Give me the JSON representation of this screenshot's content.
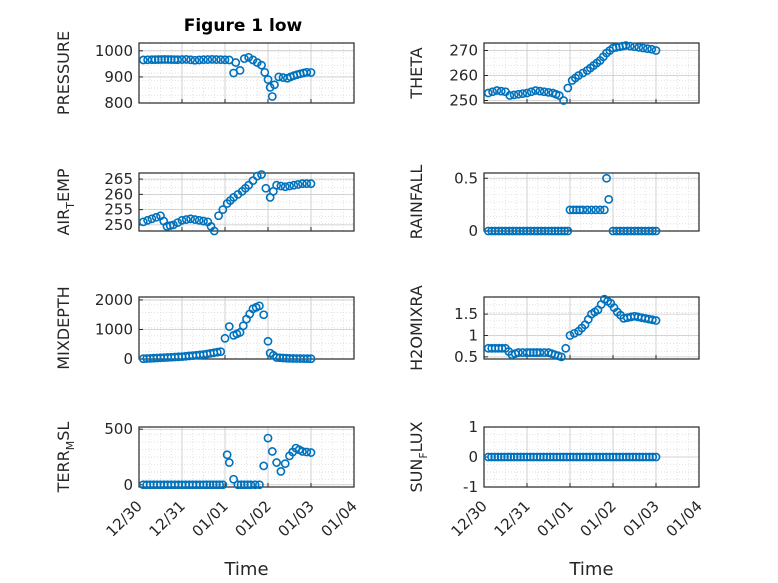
{
  "figure": {
    "title": "Figure 1 low",
    "marker_color": "#0072BD",
    "axis_color": "#262626",
    "grid_color": "#d9d9d9"
  },
  "chart_data": [
    {
      "type": "scatter",
      "ylabel": "PRESSURE",
      "yticks": [
        800,
        900,
        1000
      ],
      "ylim": [
        800,
        1030
      ],
      "xlabel": "",
      "x_ticks": [
        "12/30",
        "12/31",
        "01/01",
        "01/02",
        "01/03",
        "01/04"
      ],
      "xlim": [
        0,
        5
      ],
      "points": [
        [
          0.1,
          965
        ],
        [
          0.3,
          966
        ],
        [
          0.6,
          967
        ],
        [
          0.9,
          966
        ],
        [
          1.1,
          967
        ],
        [
          1.3,
          964
        ],
        [
          1.5,
          966
        ],
        [
          1.7,
          967
        ],
        [
          1.9,
          966
        ],
        [
          2.1,
          965
        ],
        [
          2.2,
          915
        ],
        [
          2.25,
          955
        ],
        [
          2.35,
          925
        ],
        [
          2.45,
          970
        ],
        [
          2.55,
          975
        ],
        [
          2.65,
          965
        ],
        [
          2.75,
          955
        ],
        [
          2.85,
          945
        ],
        [
          3.0,
          890
        ],
        [
          3.05,
          860
        ],
        [
          3.1,
          825
        ],
        [
          3.15,
          870
        ],
        [
          3.25,
          900
        ],
        [
          3.45,
          895
        ],
        [
          3.6,
          905
        ],
        [
          3.75,
          912
        ],
        [
          3.9,
          918
        ],
        [
          4.0,
          917
        ]
      ]
    },
    {
      "type": "scatter",
      "ylabel": "THETA",
      "yticks": [
        250,
        260,
        270
      ],
      "ylim": [
        249,
        273
      ],
      "xlabel": "",
      "x_ticks": [
        "12/30",
        "12/31",
        "01/01",
        "01/02",
        "01/03",
        "01/04"
      ],
      "xlim": [
        0,
        5
      ],
      "points": [
        [
          0.1,
          253
        ],
        [
          0.3,
          254
        ],
        [
          0.5,
          253.5
        ],
        [
          0.6,
          252
        ],
        [
          0.8,
          252.5
        ],
        [
          1.0,
          253
        ],
        [
          1.2,
          254
        ],
        [
          1.4,
          253.5
        ],
        [
          1.6,
          253
        ],
        [
          1.75,
          252
        ],
        [
          1.85,
          250
        ],
        [
          1.95,
          255
        ],
        [
          2.05,
          258
        ],
        [
          2.2,
          260
        ],
        [
          2.4,
          262
        ],
        [
          2.55,
          264
        ],
        [
          2.7,
          266
        ],
        [
          2.85,
          269
        ],
        [
          3.0,
          271
        ],
        [
          3.15,
          271.5
        ],
        [
          3.3,
          272
        ],
        [
          3.5,
          271.5
        ],
        [
          3.7,
          271
        ],
        [
          3.9,
          270.5
        ],
        [
          4.0,
          270
        ]
      ]
    },
    {
      "type": "scatter",
      "ylabel": "AIR_TEMP",
      "yticks": [
        250,
        255,
        260,
        265
      ],
      "ylim": [
        248,
        267
      ],
      "xlabel": "",
      "x_ticks": [
        "12/30",
        "12/31",
        "01/01",
        "01/02",
        "01/03",
        "01/04"
      ],
      "xlim": [
        0,
        5
      ],
      "points": [
        [
          0.1,
          251
        ],
        [
          0.3,
          252
        ],
        [
          0.5,
          253
        ],
        [
          0.65,
          249.5
        ],
        [
          0.8,
          250
        ],
        [
          1.0,
          251.5
        ],
        [
          1.2,
          252
        ],
        [
          1.4,
          251.5
        ],
        [
          1.6,
          251
        ],
        [
          1.75,
          248
        ],
        [
          1.85,
          253
        ],
        [
          1.95,
          255
        ],
        [
          2.05,
          257
        ],
        [
          2.2,
          259
        ],
        [
          2.4,
          261
        ],
        [
          2.55,
          263
        ],
        [
          2.75,
          266
        ],
        [
          2.85,
          266.5
        ],
        [
          2.95,
          262
        ],
        [
          3.05,
          259
        ],
        [
          3.2,
          263
        ],
        [
          3.4,
          262.5
        ],
        [
          3.6,
          263
        ],
        [
          3.8,
          263.5
        ],
        [
          4.0,
          263.5
        ]
      ]
    },
    {
      "type": "scatter",
      "ylabel": "RAINFALL",
      "yticks": [
        0,
        0.5
      ],
      "ylim": [
        0,
        0.55
      ],
      "xlabel": "",
      "x_ticks": [
        "12/30",
        "12/31",
        "01/01",
        "01/02",
        "01/03",
        "01/04"
      ],
      "xlim": [
        0,
        5
      ],
      "points": [
        [
          0.1,
          0
        ],
        [
          0.5,
          0
        ],
        [
          1.0,
          0
        ],
        [
          1.5,
          0
        ],
        [
          1.8,
          0
        ],
        [
          1.95,
          0
        ],
        [
          2.0,
          0.2
        ],
        [
          2.3,
          0.2
        ],
        [
          2.4,
          0.2
        ],
        [
          2.5,
          0.2
        ],
        [
          2.6,
          0.2
        ],
        [
          2.7,
          0.2
        ],
        [
          2.8,
          0.2
        ],
        [
          2.85,
          0.5
        ],
        [
          2.9,
          0.3
        ],
        [
          3.0,
          0
        ],
        [
          3.5,
          0
        ],
        [
          4.0,
          0
        ]
      ]
    },
    {
      "type": "scatter",
      "ylabel": "MIXDEPTH",
      "yticks": [
        0,
        1000,
        2000
      ],
      "ylim": [
        0,
        2100
      ],
      "xlabel": "",
      "x_ticks": [
        "12/30",
        "12/31",
        "01/01",
        "01/02",
        "01/03",
        "01/04"
      ],
      "xlim": [
        0,
        5
      ],
      "points": [
        [
          0.1,
          10
        ],
        [
          0.5,
          40
        ],
        [
          1.0,
          80
        ],
        [
          1.5,
          150
        ],
        [
          1.9,
          250
        ],
        [
          2.0,
          700
        ],
        [
          2.1,
          1100
        ],
        [
          2.2,
          800
        ],
        [
          2.35,
          900
        ],
        [
          2.5,
          1350
        ],
        [
          2.65,
          1700
        ],
        [
          2.8,
          1800
        ],
        [
          2.9,
          1500
        ],
        [
          3.0,
          600
        ],
        [
          3.05,
          200
        ],
        [
          3.2,
          50
        ],
        [
          3.5,
          20
        ],
        [
          4.0,
          10
        ]
      ]
    },
    {
      "type": "scatter",
      "ylabel": "H2OMIXRA",
      "yticks": [
        0.5,
        1,
        1.5
      ],
      "ylim": [
        0.45,
        1.9
      ],
      "xlabel": "",
      "x_ticks": [
        "12/30",
        "12/31",
        "01/01",
        "01/02",
        "01/03",
        "01/04"
      ],
      "xlim": [
        0,
        5
      ],
      "points": [
        [
          0.1,
          0.7
        ],
        [
          0.5,
          0.7
        ],
        [
          0.65,
          0.55
        ],
        [
          0.8,
          0.6
        ],
        [
          1.0,
          0.6
        ],
        [
          1.3,
          0.6
        ],
        [
          1.5,
          0.6
        ],
        [
          1.8,
          0.5
        ],
        [
          1.9,
          0.7
        ],
        [
          2.0,
          1.0
        ],
        [
          2.2,
          1.1
        ],
        [
          2.35,
          1.25
        ],
        [
          2.5,
          1.5
        ],
        [
          2.65,
          1.6
        ],
        [
          2.8,
          1.85
        ],
        [
          2.95,
          1.75
        ],
        [
          3.1,
          1.55
        ],
        [
          3.25,
          1.4
        ],
        [
          3.5,
          1.45
        ],
        [
          3.75,
          1.4
        ],
        [
          4.0,
          1.35
        ]
      ]
    },
    {
      "type": "scatter",
      "ylabel": "TERR_MSL",
      "yticks": [
        0,
        500
      ],
      "ylim": [
        -20,
        520
      ],
      "xlabel": "Time",
      "x_ticks": [
        "12/30",
        "12/31",
        "01/01",
        "01/02",
        "01/03",
        "01/04"
      ],
      "xlim": [
        0,
        5
      ],
      "points": [
        [
          0.1,
          0
        ],
        [
          0.5,
          0
        ],
        [
          1.0,
          0
        ],
        [
          1.5,
          0
        ],
        [
          1.95,
          0
        ],
        [
          2.05,
          270
        ],
        [
          2.1,
          200
        ],
        [
          2.2,
          50
        ],
        [
          2.3,
          0
        ],
        [
          2.6,
          0
        ],
        [
          2.8,
          0
        ],
        [
          2.9,
          170
        ],
        [
          3.0,
          420
        ],
        [
          3.1,
          300
        ],
        [
          3.2,
          200
        ],
        [
          3.3,
          120
        ],
        [
          3.5,
          260
        ],
        [
          3.65,
          330
        ],
        [
          3.8,
          300
        ],
        [
          4.0,
          290
        ]
      ]
    },
    {
      "type": "scatter",
      "ylabel": "SUN_FLUX",
      "yticks": [
        -1,
        0,
        1
      ],
      "ylim": [
        -1,
        1
      ],
      "xlabel": "Time",
      "x_ticks": [
        "12/30",
        "12/31",
        "01/01",
        "01/02",
        "01/03",
        "01/04"
      ],
      "xlim": [
        0,
        5
      ],
      "points": [
        [
          0.1,
          0
        ],
        [
          1.0,
          0
        ],
        [
          2.0,
          0
        ],
        [
          3.0,
          0
        ],
        [
          4.0,
          0
        ]
      ]
    }
  ]
}
